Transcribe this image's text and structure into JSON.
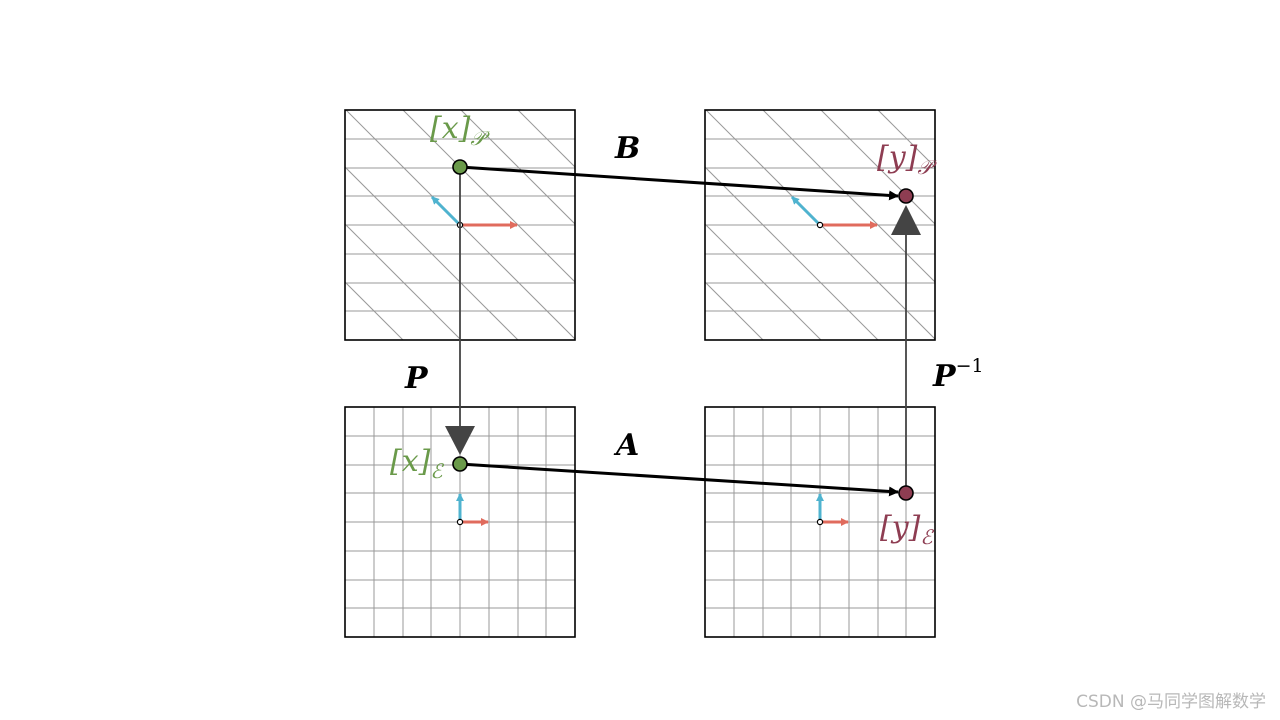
{
  "labels": {
    "op_B": "B",
    "op_A": "A",
    "op_P": "P",
    "op_Pinv_base": "P",
    "op_Pinv_exp": "−1",
    "x_P": {
      "sym": "x",
      "sub": "𝒫"
    },
    "y_P": {
      "sym": "y",
      "sub": "𝒫"
    },
    "x_E": {
      "sym": "x",
      "sub": "ℰ"
    },
    "y_E": {
      "sym": "y",
      "sub": "ℰ"
    }
  },
  "colors": {
    "green_point": "#6a9a4a",
    "red_point": "#8e3d52",
    "green_label": "#6a9a4a",
    "red_label": "#8e3d52",
    "basis_red": "#e06b5d",
    "basis_blue": "#4fb3cf",
    "arrow_black": "#000000",
    "arrow_gray": "#444444",
    "grid": "#999999",
    "frame": "#000000"
  },
  "watermark": "CSDN @马同学图解数学"
}
